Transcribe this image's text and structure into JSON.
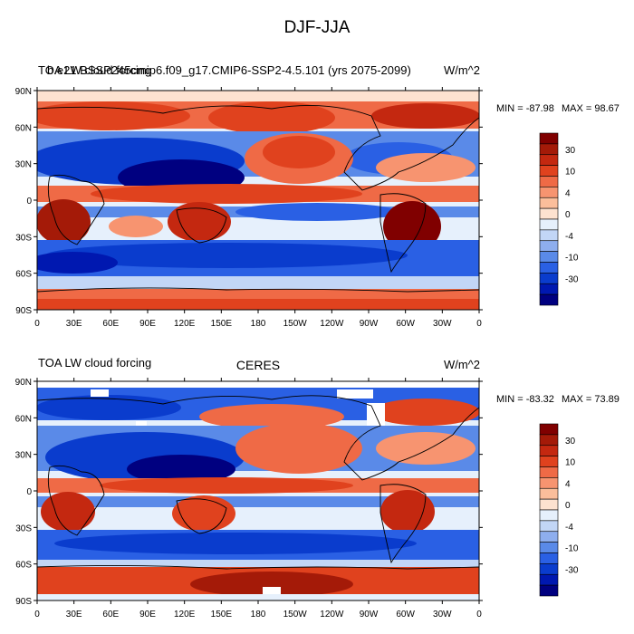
{
  "figure": {
    "title": "DJF-JJA"
  },
  "colors": {
    "levels": [
      "#000080",
      "#0018b0",
      "#0a3ccd",
      "#2a60e4",
      "#5a8ae8",
      "#8eaeee",
      "#c2d6f6",
      "#e6f0fc",
      "#fde2d0",
      "#fbbe9b",
      "#f79470",
      "#ef6a46",
      "#e0421e",
      "#c42810",
      "#a41a08",
      "#800000"
    ],
    "ocean_neg": "#1e4bd8",
    "ocean_pos": "#e04a20",
    "land_line": "#000000",
    "missing": "#ffffff"
  },
  "colorbar": {
    "labels": [
      "30",
      "10",
      "4",
      "0",
      "-4",
      "-10",
      "-30"
    ]
  },
  "panels": [
    {
      "id": "model",
      "left_title": "TOA LW cloud forcing",
      "overlap_title": "b.e21.BSSP245cmip6.f09_g17.CMIP6-SSP2-4.5.101 (yrs 2075-2099)",
      "units": "W/m^2",
      "min_label": "MIN = -87.98",
      "max_label": "MAX =  98.67"
    },
    {
      "id": "obs",
      "left_title": "TOA LW cloud forcing",
      "center_title": "CERES",
      "units": "W/m^2",
      "min_label": "MIN = -83.32",
      "max_label": "MAX =  73.89"
    }
  ],
  "axes": {
    "lat_labels": [
      "90N",
      "60N",
      "30N",
      "0",
      "30S",
      "60S",
      "90S"
    ],
    "lon_labels": [
      "0",
      "30E",
      "60E",
      "90E",
      "120E",
      "150E",
      "180",
      "150W",
      "120W",
      "90W",
      "60W",
      "30W",
      "0"
    ]
  }
}
